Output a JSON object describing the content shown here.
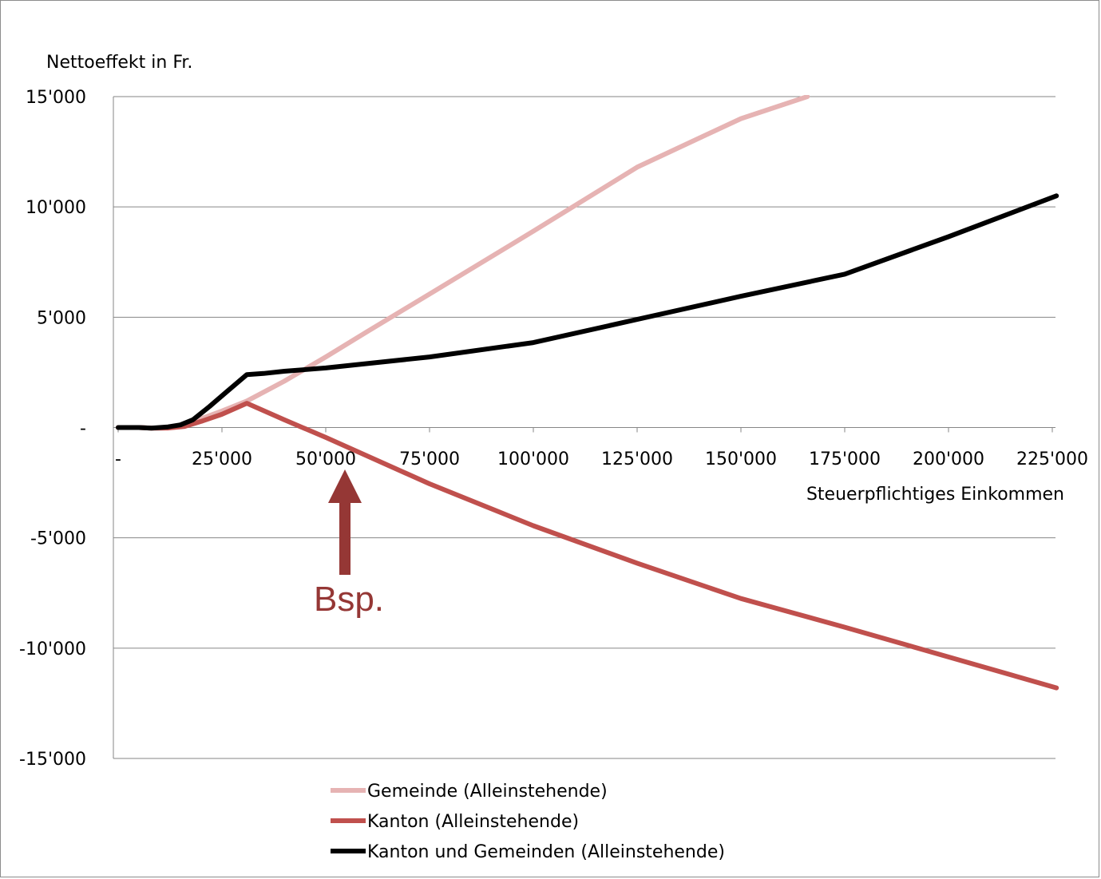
{
  "chart_data": {
    "type": "line",
    "ylabel": "Nettoeffekt in Fr.",
    "xlabel": "Steuerpflichtiges Einkommen",
    "xlim": [
      0,
      227000
    ],
    "ylim": [
      -15000,
      15000
    ],
    "x_ticks": [
      {
        "value": 0,
        "label": "-"
      },
      {
        "value": 25000,
        "label": "25'000"
      },
      {
        "value": 50000,
        "label": "50'000"
      },
      {
        "value": 75000,
        "label": "75'000"
      },
      {
        "value": 100000,
        "label": "100'000"
      },
      {
        "value": 125000,
        "label": "125'000"
      },
      {
        "value": 150000,
        "label": "150'000"
      },
      {
        "value": 175000,
        "label": "175'000"
      },
      {
        "value": 200000,
        "label": "200'000"
      },
      {
        "value": 225000,
        "label": "225'000"
      }
    ],
    "y_ticks": [
      {
        "value": 15000,
        "label": "15'000"
      },
      {
        "value": 10000,
        "label": "10'000"
      },
      {
        "value": 5000,
        "label": "5'000"
      },
      {
        "value": 0,
        "label": "-"
      },
      {
        "value": -5000,
        "label": "-5'000"
      },
      {
        "value": -10000,
        "label": "-10'000"
      },
      {
        "value": -15000,
        "label": "-15'000"
      }
    ],
    "grid": true,
    "legend_position": "bottom",
    "series": [
      {
        "name": "Gemeinde (Alleinstehende)",
        "color": "#e6b3b3",
        "x": [
          0,
          5000,
          8000,
          12000,
          16000,
          20000,
          25000,
          31000,
          40000,
          50000,
          60000,
          75000,
          100000,
          125000,
          150000,
          166000
        ],
        "y": [
          0,
          0,
          -30,
          -20,
          80,
          400,
          750,
          1200,
          2100,
          3200,
          4350,
          6050,
          8900,
          11800,
          14000,
          15000
        ]
      },
      {
        "name": "Kanton (Alleinstehende)",
        "color": "#c0504d",
        "x": [
          0,
          5000,
          8000,
          12000,
          16000,
          20000,
          25000,
          31000,
          40000,
          50000,
          75000,
          100000,
          125000,
          150000,
          175000,
          200000,
          226000
        ],
        "y": [
          0,
          0,
          -30,
          -20,
          50,
          280,
          600,
          1100,
          350,
          -450,
          -2550,
          -4450,
          -6150,
          -7750,
          -9050,
          -10400,
          -11800
        ]
      },
      {
        "name": "Kanton und Gemeinden (Alleinstehende)",
        "color": "#000000",
        "x": [
          0,
          5000,
          8000,
          12000,
          15000,
          18000,
          22000,
          26000,
          31000,
          35000,
          40000,
          50000,
          60000,
          75000,
          100000,
          125000,
          150000,
          175000,
          200000,
          226000
        ],
        "y": [
          0,
          0,
          -30,
          30,
          120,
          350,
          950,
          1600,
          2400,
          2450,
          2550,
          2700,
          2900,
          3200,
          3850,
          4900,
          5950,
          6950,
          8650,
          10500
        ]
      }
    ],
    "annotations": [
      {
        "text": "Bsp.",
        "x": 55000,
        "color": "#953735"
      }
    ]
  }
}
